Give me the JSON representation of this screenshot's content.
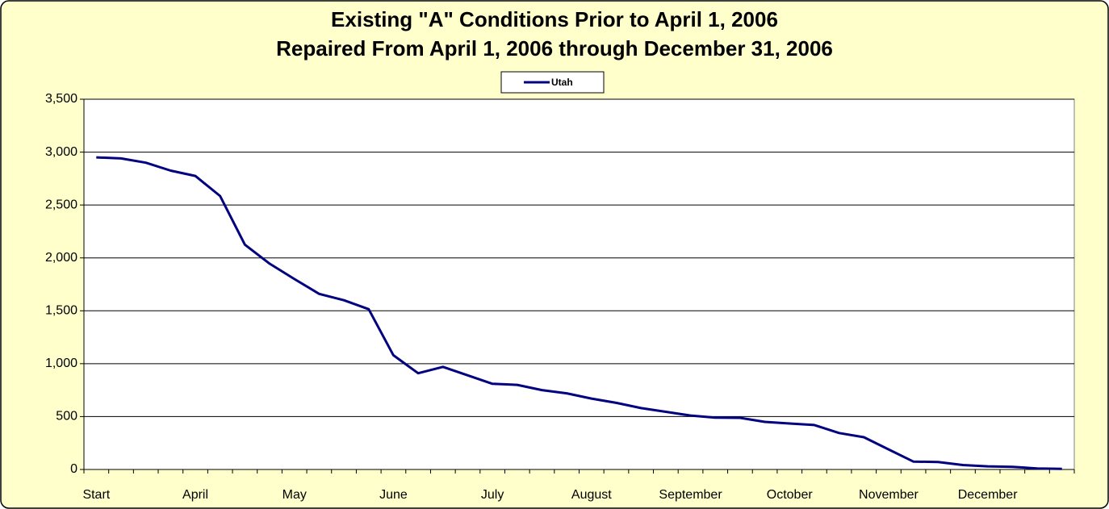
{
  "chart_data": {
    "type": "line",
    "title": [
      "Existing \"A\" Conditions Prior to April 1, 2006",
      "Repaired From April 1, 2006 through December 31, 2006"
    ],
    "categories": [
      "Start",
      null,
      null,
      null,
      "April",
      null,
      null,
      null,
      "May",
      null,
      null,
      null,
      "June",
      null,
      null,
      null,
      "July",
      null,
      null,
      null,
      "August",
      null,
      null,
      null,
      "September",
      null,
      null,
      null,
      "October",
      null,
      null,
      null,
      "November",
      null,
      null,
      null,
      "December",
      null,
      null,
      null
    ],
    "series": [
      {
        "name": "Utah",
        "color": "#000080",
        "values": [
          2950,
          2940,
          2900,
          2825,
          2775,
          2585,
          2125,
          1945,
          1800,
          1660,
          1600,
          1515,
          1080,
          910,
          970,
          890,
          810,
          800,
          750,
          720,
          670,
          630,
          580,
          545,
          510,
          490,
          488,
          450,
          435,
          420,
          345,
          305,
          190,
          75,
          70,
          42,
          30,
          25,
          10,
          5
        ]
      }
    ],
    "ylim": [
      0,
      3500
    ],
    "yticks": [
      0,
      500,
      {
        "value": 1000,
        "label": "1,000"
      },
      {
        "value": 1500,
        "label": "1,500"
      },
      {
        "value": 2000,
        "label": "2,000"
      },
      {
        "value": 2500,
        "label": "2,500"
      },
      {
        "value": 3000,
        "label": "3,000"
      },
      {
        "value": 3500,
        "label": "3,500"
      }
    ],
    "grid": true,
    "legend": "top"
  }
}
